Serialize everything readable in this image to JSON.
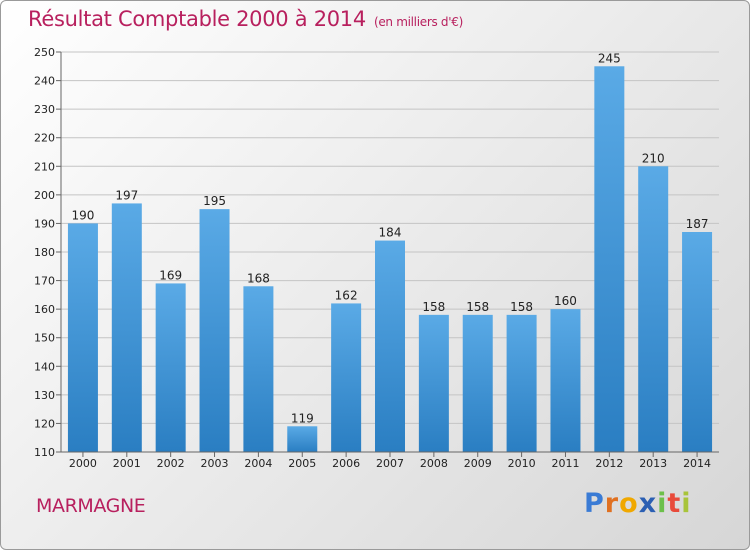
{
  "header": {
    "title": "Résultat Comptable 2000 à 2014",
    "subtitle": "(en milliers d'€)"
  },
  "footer": {
    "place": "MARMAGNE",
    "logo": [
      "P",
      "r",
      "o",
      "x",
      "i",
      "t",
      "i"
    ]
  },
  "colors": {
    "title": "#b8205e",
    "bar_light": "#5aaae6",
    "bar_dark": "#2a7ec2"
  },
  "chart_data": {
    "type": "bar",
    "categories": [
      "2000",
      "2001",
      "2002",
      "2003",
      "2004",
      "2005",
      "2006",
      "2007",
      "2008",
      "2009",
      "2010",
      "2011",
      "2012",
      "2013",
      "2014"
    ],
    "values": [
      190,
      197,
      169,
      195,
      168,
      119,
      162,
      184,
      158,
      158,
      158,
      160,
      245,
      210,
      187
    ],
    "ylim": [
      110,
      250
    ],
    "yticks": [
      110,
      120,
      130,
      140,
      150,
      160,
      170,
      180,
      190,
      200,
      210,
      220,
      230,
      240,
      250
    ],
    "grid": true,
    "data_labels": true
  }
}
